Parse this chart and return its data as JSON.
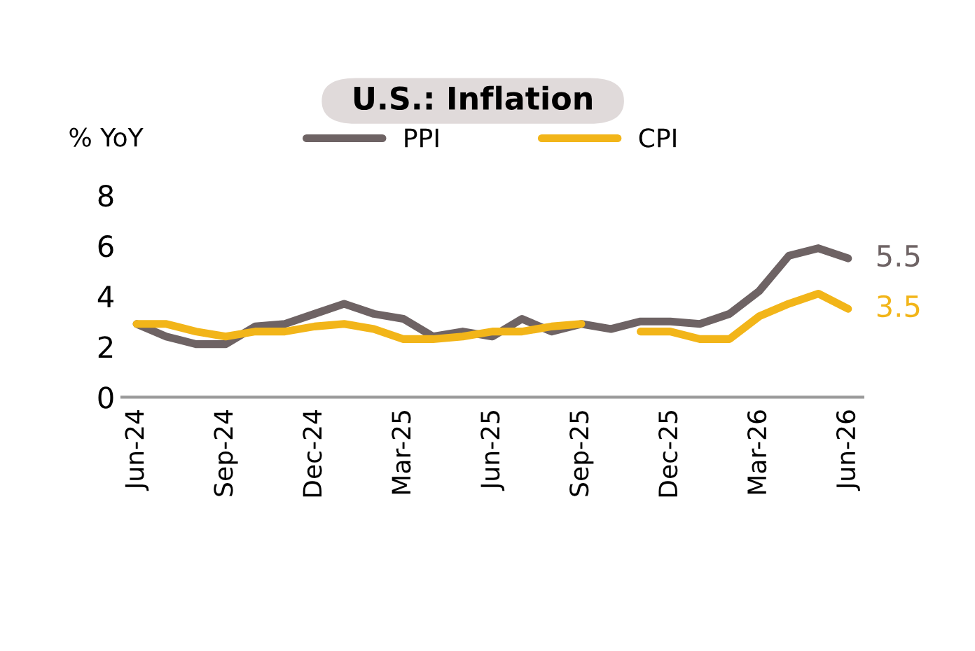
{
  "chart_data": {
    "type": "line",
    "title": "U.S.: Inflation",
    "ylabel": "% YoY",
    "categories": [
      "Jun-24",
      null,
      null,
      "Sep-24",
      null,
      null,
      "Dec-24",
      null,
      null,
      "Mar-25",
      null,
      null,
      "Jun-25",
      null,
      null,
      "Sep-25",
      null,
      null,
      "Dec-25",
      null,
      null,
      "Mar-26",
      null,
      null,
      "Jun-26"
    ],
    "series": [
      {
        "name": "PPI",
        "color": "#6e6364",
        "values": [
          2.9,
          2.4,
          2.1,
          2.1,
          2.8,
          2.9,
          3.3,
          3.7,
          3.3,
          3.1,
          2.4,
          2.6,
          2.4,
          3.1,
          2.6,
          2.9,
          2.7,
          3.0,
          3.0,
          2.9,
          3.3,
          4.2,
          5.6,
          5.9,
          5.5
        ]
      },
      {
        "name": "CPI",
        "color": "#f2b519",
        "values": [
          2.9,
          2.9,
          2.6,
          2.4,
          2.6,
          2.6,
          2.8,
          2.9,
          2.7,
          2.3,
          2.3,
          2.4,
          2.6,
          2.6,
          2.8,
          2.9,
          null,
          2.6,
          2.6,
          2.3,
          2.3,
          3.2,
          3.7,
          4.1,
          3.5
        ]
      }
    ],
    "annotations": [
      {
        "text": "5.5",
        "x": "Jun-26",
        "y": 5.5
      },
      {
        "text": "3.5",
        "x": "Jun-26",
        "y": 3.5
      }
    ],
    "ylim": [
      0,
      8
    ],
    "yticks": [
      0,
      2,
      4,
      6,
      8
    ],
    "grid": false,
    "legend": "top",
    "marker": "none",
    "line_style": "solid"
  }
}
